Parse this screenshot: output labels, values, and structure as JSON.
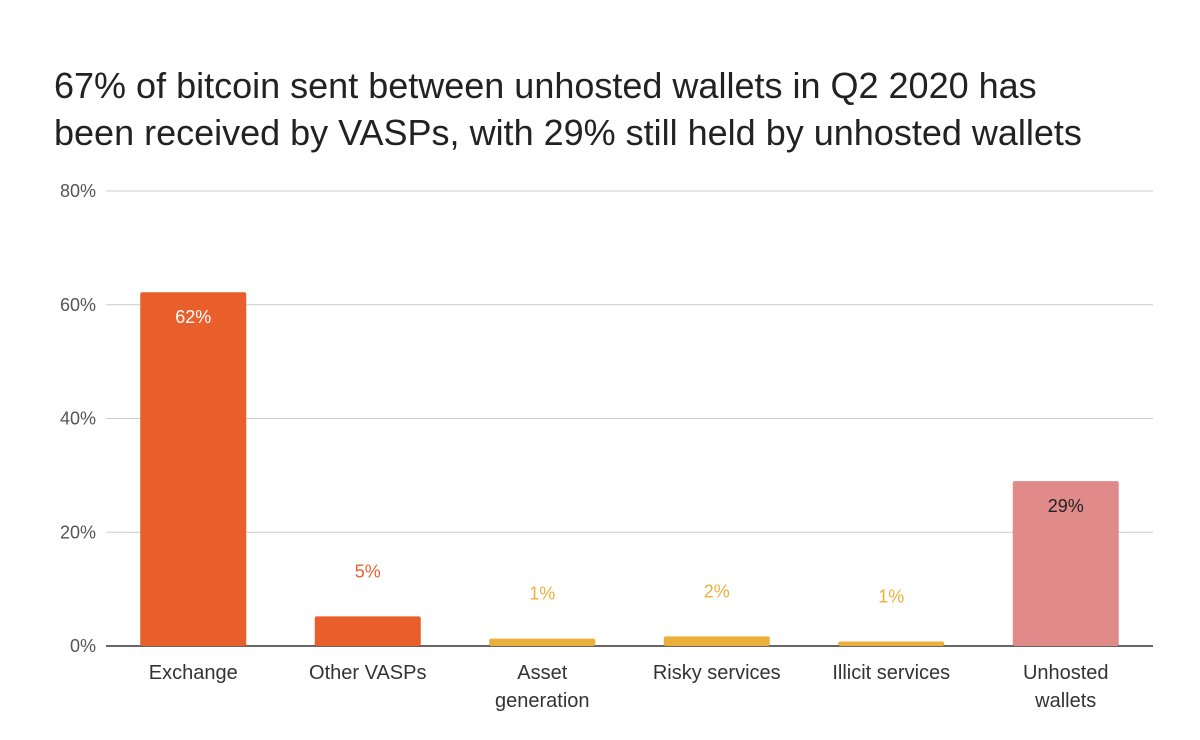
{
  "chart_data": {
    "type": "bar",
    "title_lines": [
      "67% of bitcoin sent between unhosted wallets in Q2 2020 has",
      "been received by VASPs, with 29% still held by unhosted wallets"
    ],
    "categories": [
      [
        "Exchange"
      ],
      [
        "Other VASPs"
      ],
      [
        "Asset",
        "generation"
      ],
      [
        "Risky services"
      ],
      [
        "Illicit services"
      ],
      [
        "Unhosted",
        "wallets"
      ]
    ],
    "values": [
      62.2,
      5.2,
      1.3,
      1.7,
      0.8,
      29
    ],
    "data_labels": [
      "62%",
      "5%",
      "1%",
      "2%",
      "1%",
      "29%"
    ],
    "bar_colors": [
      "#e95f2c",
      "#e95f2c",
      "#ebb03b",
      "#ebb03b",
      "#ebb03b",
      "#e08a8a"
    ],
    "label_colors": [
      "#ffffff",
      "#e95f2c",
      "#ebb03b",
      "#ebb03b",
      "#ebb03b",
      "#222222"
    ],
    "label_inside": [
      true,
      false,
      false,
      false,
      false,
      true
    ],
    "ylim": [
      0,
      80
    ],
    "yticks": [
      0,
      20,
      40,
      60,
      80
    ],
    "ytick_labels": [
      "0%",
      "20%",
      "40%",
      "60%",
      "80%"
    ],
    "grid": true,
    "legend": "none"
  }
}
